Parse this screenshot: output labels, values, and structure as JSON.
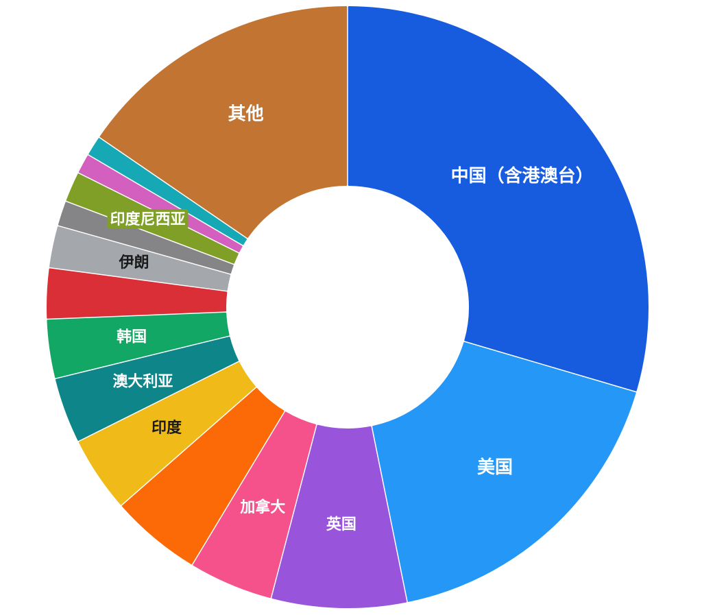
{
  "chart_data": {
    "type": "pie",
    "donut": true,
    "categories": [
      "中国（含港澳台）",
      "美国",
      "英国",
      "加拿大",
      "",
      "印度",
      "澳大利亚",
      "韩国",
      "",
      "伊朗",
      "",
      "印度尼西亚",
      "",
      "",
      "其他"
    ],
    "values": [
      32.5,
      19.0,
      8.0,
      5.0,
      5.4,
      4.5,
      3.9,
      3.5,
      3.0,
      2.5,
      1.5,
      1.8,
      1.2,
      1.2,
      17.0
    ],
    "colors": [
      "#175CDE",
      "#2497F7",
      "#9855DB",
      "#F5528C",
      "#FB6A06",
      "#F0BA18",
      "#0E8589",
      "#12A764",
      "#DB2F37",
      "#A4A7AB",
      "#858588",
      "#7F9F26",
      "#D35FBE",
      "#16A9B5",
      "#C27533"
    ],
    "label_colors": [
      "#ffffff",
      "#ffffff",
      "#ffffff",
      "#ffffff",
      "#ffffff",
      "#1a1a1a",
      "#ffffff",
      "#ffffff",
      "#ffffff",
      "#1a1a1a",
      "#ffffff",
      "#ffffff",
      "#ffffff",
      "#ffffff",
      "#ffffff"
    ]
  }
}
